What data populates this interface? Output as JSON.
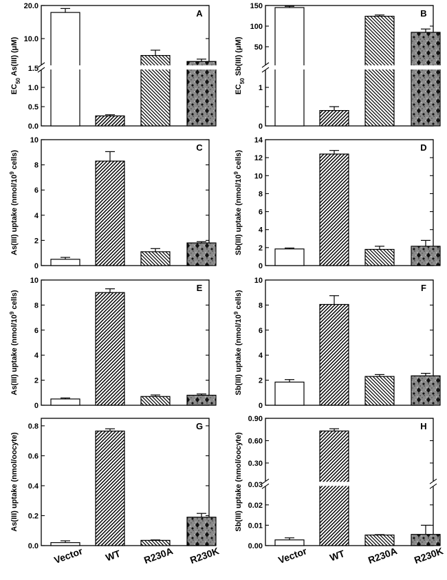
{
  "categories": [
    "Vector",
    "WT",
    "R230A",
    "R230K"
  ],
  "fills": [
    "white",
    "hatch-dense",
    "hatch-sparse",
    "dots-dark"
  ],
  "chart_data": [
    {
      "id": "A",
      "type": "bar",
      "letter": "A",
      "ylabel": [
        "EC",
        "50",
        " As(III) (μM)"
      ],
      "broken": true,
      "lower": {
        "range": [
          0,
          1.5
        ],
        "ticks": [
          0,
          0.5,
          1.0
        ],
        "tick_labels": [
          "0.0",
          "0.5",
          "1.0"
        ]
      },
      "upper": {
        "range": [
          1.5,
          20
        ],
        "ticks": [
          1.5,
          10,
          20
        ],
        "tick_labels": [
          "1.5",
          "10.0",
          "20.0"
        ]
      },
      "values": [
        17.9,
        0.26,
        4.9,
        3.1
      ],
      "errors": [
        1.2,
        0.03,
        1.6,
        0.7
      ]
    },
    {
      "id": "B",
      "type": "bar",
      "letter": "B",
      "ylabel": [
        "EC",
        "50",
        " Sb(III) (μM)"
      ],
      "broken": true,
      "lower": {
        "range": [
          0,
          1.5
        ],
        "ticks": [
          0,
          0.5,
          1.0,
          1.5
        ],
        "tick_labels": [
          "0",
          "",
          "1",
          ""
        ]
      },
      "upper": {
        "range": [
          1.5,
          150
        ],
        "ticks": [
          50,
          100,
          150
        ],
        "tick_labels": [
          "50",
          "100",
          "150"
        ]
      },
      "values": [
        145,
        0.4,
        124,
        85
      ],
      "errors": [
        3,
        0.1,
        3,
        8
      ]
    },
    {
      "id": "C",
      "type": "bar",
      "letter": "C",
      "ylabel": [
        "As(III) uptake (nmol/10",
        "9",
        " cells)"
      ],
      "broken": false,
      "range": [
        0,
        10
      ],
      "ticks": [
        0,
        2,
        4,
        6,
        8,
        10
      ],
      "tick_labels": [
        "0",
        "2",
        "4",
        "6",
        "8",
        "10"
      ],
      "values": [
        0.5,
        8.3,
        1.1,
        1.8
      ],
      "errors": [
        0.15,
        0.75,
        0.25,
        0.1
      ]
    },
    {
      "id": "D",
      "type": "bar",
      "letter": "D",
      "ylabel": [
        "Sb(III) uptake (nmol/10",
        "9",
        " cells)"
      ],
      "broken": false,
      "range": [
        0,
        14
      ],
      "ticks": [
        0,
        2,
        4,
        6,
        8,
        10,
        12,
        14
      ],
      "tick_labels": [
        "0",
        "2",
        "4",
        "6",
        "8",
        "10",
        "12",
        "14"
      ],
      "values": [
        1.85,
        12.4,
        1.8,
        2.15
      ],
      "errors": [
        0.1,
        0.4,
        0.35,
        0.65
      ]
    },
    {
      "id": "E",
      "type": "bar",
      "letter": "E",
      "ylabel": [
        "As(III) uptake (nmol/10",
        "9",
        " cells)"
      ],
      "broken": false,
      "range": [
        0,
        10
      ],
      "ticks": [
        0,
        2,
        4,
        6,
        8,
        10
      ],
      "tick_labels": [
        "0",
        "2",
        "4",
        "6",
        "8",
        "10"
      ],
      "values": [
        0.5,
        9.0,
        0.7,
        0.8
      ],
      "errors": [
        0.08,
        0.3,
        0.12,
        0.1
      ]
    },
    {
      "id": "F",
      "type": "bar",
      "letter": "F",
      "ylabel": [
        "Sb(III) uptake (nmol/10",
        "9",
        " cells)"
      ],
      "broken": false,
      "range": [
        0,
        10
      ],
      "ticks": [
        0,
        2,
        4,
        6,
        8,
        10
      ],
      "tick_labels": [
        "0",
        "2",
        "4",
        "6",
        "8",
        "10"
      ],
      "values": [
        1.85,
        8.05,
        2.3,
        2.35
      ],
      "errors": [
        0.2,
        0.7,
        0.15,
        0.2
      ]
    },
    {
      "id": "G",
      "type": "bar",
      "letter": "G",
      "ylabel": [
        "As(III) uptake (nmol/oocyte)"
      ],
      "broken": false,
      "range": [
        0,
        0.85
      ],
      "ticks": [
        0,
        0.2,
        0.4,
        0.6,
        0.8
      ],
      "tick_labels": [
        "0.0",
        "0.2",
        "0.4",
        "0.6",
        "0.8"
      ],
      "values": [
        0.02,
        0.765,
        0.035,
        0.19
      ],
      "errors": [
        0.012,
        0.015,
        0.003,
        0.025
      ]
    },
    {
      "id": "H",
      "type": "bar",
      "letter": "H",
      "ylabel": [
        "Sb(III) uptake (nmol/oocyte)"
      ],
      "broken": true,
      "lower": {
        "range": [
          0,
          0.03
        ],
        "ticks": [
          0,
          0.01,
          0.02,
          0.03
        ],
        "tick_labels": [
          "0.00",
          "0.01",
          "0.02",
          "0.03"
        ]
      },
      "upper": {
        "range": [
          0.03,
          0.9
        ],
        "ticks": [
          0.3,
          0.6,
          0.9
        ],
        "tick_labels": [
          "0.30",
          "0.60",
          "0.90"
        ]
      },
      "values": [
        0.0028,
        0.73,
        0.0052,
        0.0055
      ],
      "errors": [
        0.001,
        0.03,
        0.0002,
        0.0045
      ]
    }
  ]
}
